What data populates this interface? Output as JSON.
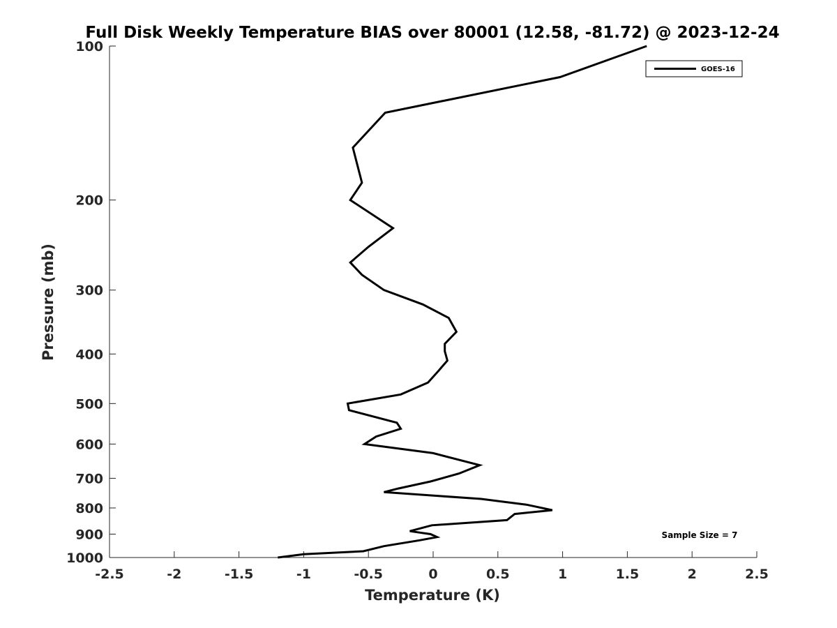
{
  "chart_data": {
    "type": "line",
    "title": "Full Disk Weekly Temperature BIAS over 80001 (12.58, -81.72) @ 2023-12-24",
    "xlabel": "Temperature (K)",
    "ylabel": "Pressure (mb)",
    "xlim": [
      -2.5,
      2.5
    ],
    "ylim": [
      100,
      1000
    ],
    "y_scale": "log-reversed",
    "x_ticks": [
      -2.5,
      -2,
      -1.5,
      -1,
      -0.5,
      0,
      0.5,
      1,
      1.5,
      2,
      2.5
    ],
    "x_tick_labels": [
      "-2.5",
      "-2",
      "-1.5",
      "-1",
      "-0.5",
      "0",
      "0.5",
      "1",
      "1.5",
      "2",
      "2.5"
    ],
    "y_ticks": [
      100,
      200,
      300,
      400,
      500,
      600,
      700,
      800,
      900,
      1000
    ],
    "y_tick_labels": [
      "100",
      "200",
      "300",
      "400",
      "500",
      "600",
      "700",
      "800",
      "900",
      "1000"
    ],
    "legend": {
      "position": "top-right",
      "entries": [
        "GOES-16"
      ]
    },
    "annotation": "Sample Size = 7",
    "series": [
      {
        "name": "GOES-16",
        "color": "#000000",
        "points": [
          {
            "t": 1.65,
            "p": 100
          },
          {
            "t": 0.98,
            "p": 115
          },
          {
            "t": -0.37,
            "p": 135
          },
          {
            "t": -0.62,
            "p": 158
          },
          {
            "t": -0.55,
            "p": 185
          },
          {
            "t": -0.64,
            "p": 200
          },
          {
            "t": -0.31,
            "p": 227
          },
          {
            "t": -0.5,
            "p": 247
          },
          {
            "t": -0.64,
            "p": 265
          },
          {
            "t": -0.55,
            "p": 280
          },
          {
            "t": -0.38,
            "p": 300
          },
          {
            "t": -0.08,
            "p": 320
          },
          {
            "t": 0.12,
            "p": 340
          },
          {
            "t": 0.18,
            "p": 362
          },
          {
            "t": 0.09,
            "p": 382
          },
          {
            "t": 0.09,
            "p": 395
          },
          {
            "t": 0.11,
            "p": 412
          },
          {
            "t": 0.04,
            "p": 432
          },
          {
            "t": -0.04,
            "p": 455
          },
          {
            "t": -0.25,
            "p": 480
          },
          {
            "t": -0.66,
            "p": 500
          },
          {
            "t": -0.65,
            "p": 515
          },
          {
            "t": -0.28,
            "p": 545
          },
          {
            "t": -0.25,
            "p": 560
          },
          {
            "t": -0.44,
            "p": 580
          },
          {
            "t": -0.53,
            "p": 600
          },
          {
            "t": 0.0,
            "p": 625
          },
          {
            "t": 0.36,
            "p": 660
          },
          {
            "t": 0.2,
            "p": 685
          },
          {
            "t": -0.02,
            "p": 710
          },
          {
            "t": -0.27,
            "p": 733
          },
          {
            "t": -0.38,
            "p": 745
          },
          {
            "t": 0.37,
            "p": 768
          },
          {
            "t": 0.72,
            "p": 788
          },
          {
            "t": 0.92,
            "p": 808
          },
          {
            "t": 0.63,
            "p": 822
          },
          {
            "t": 0.57,
            "p": 845
          },
          {
            "t": -0.01,
            "p": 865
          },
          {
            "t": -0.18,
            "p": 888
          },
          {
            "t": -0.02,
            "p": 900
          },
          {
            "t": 0.03,
            "p": 912
          },
          {
            "t": -0.1,
            "p": 925
          },
          {
            "t": -0.38,
            "p": 950
          },
          {
            "t": -0.54,
            "p": 972
          },
          {
            "t": -1.0,
            "p": 985
          },
          {
            "t": -1.2,
            "p": 1000
          }
        ]
      }
    ]
  }
}
